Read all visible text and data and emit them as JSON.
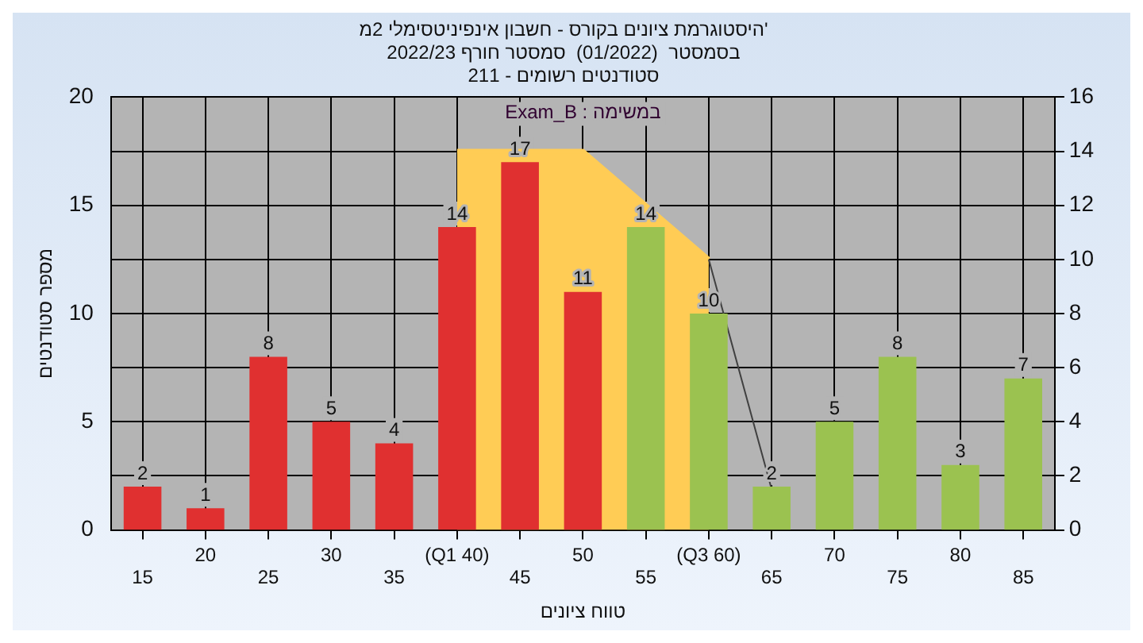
{
  "chart_data": {
    "type": "bar",
    "title": "היסטוגרמת ציונים בקורס - חשבון אינפיניטסימלי 2מ'",
    "subtitle": [
      "בסמסטר  (01/2022)  סמסטר חורף 2022/23",
      "סטודנטים רשומים - 211"
    ],
    "xlabel": "טווח ציונים",
    "ylabel": "מספר סטודנטים",
    "annotations": [
      "Exam_B : במשימה"
    ],
    "categories": [
      "15",
      "20",
      "25",
      "30",
      "35",
      "(Q1 40)",
      "45",
      "50",
      "55",
      "(Q3 60)",
      "65",
      "70",
      "75",
      "80",
      "85"
    ],
    "series": [
      {
        "colors": [
          "#e03030",
          "#e03030",
          "#e03030",
          "#e03030",
          "#e03030",
          "#e03030",
          "#e03030",
          "#e03030",
          "#9bc250",
          "#9bc250",
          "#9bc250",
          "#9bc250",
          "#9bc250",
          "#9bc250",
          "#9bc250"
        ],
        "values": [
          2,
          1,
          8,
          5,
          4,
          14,
          17,
          11,
          14,
          10,
          2,
          5,
          8,
          3,
          7
        ],
        "value_labels": [
          "2",
          "1",
          "8",
          "5",
          "4",
          "14",
          "17",
          "11",
          "14",
          "10",
          "2",
          "5",
          "8",
          "3",
          "7"
        ]
      },
      {
        "type": "area",
        "axis": "y2",
        "color": "#ffcc55",
        "values": [
          null,
          null,
          null,
          null,
          null,
          14,
          14,
          14,
          12,
          10,
          null,
          null,
          null,
          null,
          null
        ]
      },
      {
        "type": "line",
        "axis": "y2",
        "color": "#404040",
        "values": [
          null,
          null,
          null,
          null,
          null,
          null,
          null,
          null,
          null,
          10,
          1.5,
          null,
          null,
          null,
          null
        ]
      }
    ],
    "ylim": [
      0,
      20
    ],
    "yticks": [
      0,
      5,
      10,
      15,
      20
    ],
    "y2lim": [
      0,
      16
    ],
    "y2ticks": [
      0,
      2,
      4,
      6,
      8,
      10,
      12,
      14,
      16
    ],
    "grid": true,
    "legend": false
  }
}
